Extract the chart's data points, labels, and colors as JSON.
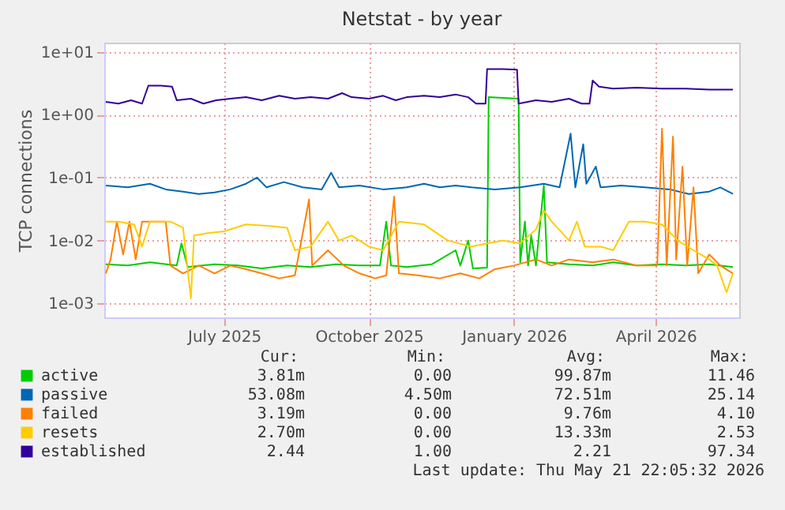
{
  "chart_data": {
    "type": "line",
    "title": "Netstat - by year",
    "ylabel": "TCP connections",
    "log": "y",
    "grid": true,
    "legend": "bottom",
    "xlim": [
      "2025-04-16",
      "2026-05-24"
    ],
    "xticks": [
      {
        "value": "2025-07-01",
        "label": "July 2025"
      },
      {
        "value": "2025-10-01",
        "label": "October 2025"
      },
      {
        "value": "2026-01-01",
        "label": "January 2026"
      },
      {
        "value": "2026-04-01",
        "label": "April 2026"
      }
    ],
    "ylim": [
      0.0006,
      14
    ],
    "yticks": [
      {
        "value": 0.001,
        "label": "1e-03"
      },
      {
        "value": 0.01,
        "label": "1e-02"
      },
      {
        "value": 0.1,
        "label": "1e-01"
      },
      {
        "value": 1,
        "label": "1e+00"
      },
      {
        "value": 10,
        "label": "1e+01"
      }
    ],
    "series": [
      {
        "name": "active",
        "color": "#00cc00",
        "x": [
          "2025-04-17",
          "2025-05-01",
          "2025-05-15",
          "2025-06-01",
          "2025-06-04",
          "2025-06-08",
          "2025-06-25",
          "2025-07-10",
          "2025-07-25",
          "2025-08-10",
          "2025-08-25",
          "2025-09-10",
          "2025-09-25",
          "2025-10-08",
          "2025-10-12",
          "2025-10-15",
          "2025-10-25",
          "2025-11-10",
          "2025-11-25",
          "2025-11-28",
          "2025-12-03",
          "2025-12-06",
          "2025-12-15",
          "2025-12-16",
          "2025-12-25",
          "2026-01-04",
          "2026-01-05",
          "2026-01-08",
          "2026-01-10",
          "2026-01-12",
          "2026-01-15",
          "2026-01-20",
          "2026-01-22",
          "2026-02-05",
          "2026-02-20",
          "2026-03-05",
          "2026-03-20",
          "2026-04-05",
          "2026-04-20",
          "2026-05-05",
          "2026-05-20"
        ],
        "values": [
          0.0042,
          0.004,
          0.0045,
          0.004,
          0.009,
          0.0038,
          0.0042,
          0.004,
          0.0036,
          0.004,
          0.0038,
          0.0042,
          0.004,
          0.004,
          0.02,
          0.004,
          0.0038,
          0.0042,
          0.007,
          0.004,
          0.01,
          0.0036,
          0.0037,
          1.9,
          1.85,
          1.8,
          0.0045,
          0.02,
          0.004,
          0.012,
          0.004,
          0.075,
          0.0045,
          0.0042,
          0.004,
          0.0045,
          0.004,
          0.0042,
          0.004,
          0.0042,
          0.0038
        ]
      },
      {
        "name": "passive",
        "color": "#0066b3",
        "x": [
          "2025-04-17",
          "2025-05-01",
          "2025-05-15",
          "2025-05-25",
          "2025-06-05",
          "2025-06-15",
          "2025-06-25",
          "2025-07-05",
          "2025-07-15",
          "2025-07-22",
          "2025-07-28",
          "2025-08-08",
          "2025-08-20",
          "2025-09-01",
          "2025-09-07",
          "2025-09-12",
          "2025-09-25",
          "2025-10-10",
          "2025-10-25",
          "2025-11-05",
          "2025-11-15",
          "2025-11-25",
          "2025-12-05",
          "2025-12-20",
          "2026-01-05",
          "2026-01-20",
          "2026-01-30",
          "2026-02-06",
          "2026-02-09",
          "2026-02-14",
          "2026-02-16",
          "2026-02-22",
          "2026-02-25",
          "2026-03-10",
          "2026-03-25",
          "2026-04-10",
          "2026-04-22",
          "2026-05-05",
          "2026-05-12",
          "2026-05-20"
        ],
        "values": [
          0.075,
          0.07,
          0.08,
          0.065,
          0.06,
          0.055,
          0.058,
          0.065,
          0.08,
          0.1,
          0.07,
          0.085,
          0.07,
          0.065,
          0.12,
          0.07,
          0.075,
          0.065,
          0.07,
          0.08,
          0.07,
          0.075,
          0.07,
          0.065,
          0.07,
          0.08,
          0.07,
          0.5,
          0.07,
          0.34,
          0.08,
          0.15,
          0.07,
          0.075,
          0.07,
          0.065,
          0.055,
          0.06,
          0.07,
          0.055
        ]
      },
      {
        "name": "failed",
        "color": "#ff8000",
        "x": [
          "2025-04-17",
          "2025-04-20",
          "2025-04-24",
          "2025-04-28",
          "2025-05-02",
          "2025-05-06",
          "2025-05-10",
          "2025-05-14",
          "2025-05-25",
          "2025-05-28",
          "2025-06-05",
          "2025-06-15",
          "2025-06-25",
          "2025-07-05",
          "2025-07-15",
          "2025-07-25",
          "2025-08-05",
          "2025-08-15",
          "2025-08-24",
          "2025-08-26",
          "2025-09-05",
          "2025-09-15",
          "2025-09-25",
          "2025-10-05",
          "2025-10-12",
          "2025-10-17",
          "2025-10-20",
          "2025-11-01",
          "2025-11-15",
          "2025-11-28",
          "2025-12-10",
          "2025-12-20",
          "2026-01-01",
          "2026-01-15",
          "2026-01-25",
          "2026-02-05",
          "2026-02-20",
          "2026-03-05",
          "2026-03-20",
          "2026-04-02",
          "2026-04-05",
          "2026-04-08",
          "2026-04-12",
          "2026-04-14",
          "2026-04-18",
          "2026-04-21",
          "2026-04-25",
          "2026-04-28",
          "2026-05-05",
          "2026-05-12",
          "2026-05-20"
        ],
        "values": [
          0.003,
          0.005,
          0.02,
          0.006,
          0.02,
          0.005,
          0.02,
          0.02,
          0.02,
          0.004,
          0.003,
          0.004,
          0.003,
          0.004,
          0.0035,
          0.003,
          0.0025,
          0.0028,
          0.045,
          0.004,
          0.007,
          0.004,
          0.003,
          0.0025,
          0.0028,
          0.05,
          0.003,
          0.0028,
          0.0025,
          0.003,
          0.0025,
          0.0035,
          0.004,
          0.005,
          0.004,
          0.005,
          0.0045,
          0.005,
          0.004,
          0.004,
          0.6,
          0.004,
          0.45,
          0.005,
          0.15,
          0.004,
          0.07,
          0.003,
          0.006,
          0.004,
          0.003
        ]
      },
      {
        "name": "resets",
        "color": "#ffcc00",
        "x": [
          "2025-04-17",
          "2025-04-25",
          "2025-05-05",
          "2025-05-10",
          "2025-05-15",
          "2025-05-28",
          "2025-06-05",
          "2025-06-10",
          "2025-06-12",
          "2025-06-20",
          "2025-07-01",
          "2025-07-15",
          "2025-07-30",
          "2025-08-10",
          "2025-08-15",
          "2025-08-25",
          "2025-09-05",
          "2025-09-12",
          "2025-09-20",
          "2025-10-01",
          "2025-10-10",
          "2025-10-20",
          "2025-11-05",
          "2025-11-20",
          "2025-12-05",
          "2025-12-15",
          "2025-12-25",
          "2026-01-05",
          "2026-01-15",
          "2026-01-20",
          "2026-01-25",
          "2026-02-05",
          "2026-02-10",
          "2026-02-15",
          "2026-02-25",
          "2026-03-05",
          "2026-03-15",
          "2026-03-25",
          "2026-04-05",
          "2026-04-15",
          "2026-04-25",
          "2026-05-05",
          "2026-05-10",
          "2026-05-16",
          "2026-05-20"
        ],
        "values": [
          0.02,
          0.02,
          0.018,
          0.008,
          0.02,
          0.02,
          0.016,
          0.0012,
          0.012,
          0.013,
          0.014,
          0.018,
          0.017,
          0.016,
          0.007,
          0.008,
          0.02,
          0.01,
          0.012,
          0.008,
          0.007,
          0.02,
          0.018,
          0.01,
          0.008,
          0.009,
          0.01,
          0.009,
          0.015,
          0.03,
          0.02,
          0.01,
          0.02,
          0.008,
          0.008,
          0.007,
          0.02,
          0.02,
          0.018,
          0.01,
          0.007,
          0.005,
          0.004,
          0.0015,
          0.003
        ]
      },
      {
        "name": "established",
        "color": "#330099",
        "x": [
          "2025-04-17",
          "2025-04-25",
          "2025-05-03",
          "2025-05-10",
          "2025-05-14",
          "2025-05-22",
          "2025-05-29",
          "2025-06-01",
          "2025-06-10",
          "2025-06-18",
          "2025-06-26",
          "2025-07-05",
          "2025-07-15",
          "2025-07-25",
          "2025-08-05",
          "2025-08-15",
          "2025-08-25",
          "2025-09-05",
          "2025-09-14",
          "2025-09-20",
          "2025-10-01",
          "2025-10-10",
          "2025-10-18",
          "2025-10-25",
          "2025-11-05",
          "2025-11-15",
          "2025-11-25",
          "2025-12-03",
          "2025-12-08",
          "2025-12-14",
          "2025-12-15",
          "2025-12-25",
          "2026-01-03",
          "2026-01-04",
          "2026-01-15",
          "2026-01-25",
          "2026-02-05",
          "2026-02-13",
          "2026-02-18",
          "2026-02-20",
          "2026-02-24",
          "2026-03-05",
          "2026-03-20",
          "2026-04-05",
          "2026-04-20",
          "2026-05-05",
          "2026-05-20"
        ],
        "values": [
          1.6,
          1.5,
          1.7,
          1.5,
          2.9,
          2.9,
          2.8,
          1.7,
          1.8,
          1.5,
          1.7,
          1.8,
          1.9,
          1.7,
          2.0,
          1.8,
          1.9,
          1.8,
          2.2,
          1.9,
          1.8,
          2.0,
          1.7,
          1.9,
          2.0,
          1.9,
          2.1,
          1.9,
          1.5,
          1.5,
          5.3,
          5.3,
          5.2,
          1.5,
          1.7,
          1.6,
          1.8,
          1.5,
          1.5,
          3.5,
          2.8,
          2.6,
          2.7,
          2.6,
          2.6,
          2.5,
          2.5
        ]
      }
    ],
    "annotations": [
      "Cur:",
      "Min:",
      "Avg:",
      "Max:",
      "3.81m",
      "0.00",
      "99.87m",
      "11.46",
      "53.08m",
      "4.50m",
      "72.51m",
      "25.14",
      "3.19m",
      "0.00",
      "9.76m",
      "4.10",
      "2.70m",
      "0.00",
      "13.33m",
      "2.53",
      "2.44",
      "1.00",
      "2.21",
      "97.34",
      "Last update: Thu May 21 22:05:32 2026"
    ]
  }
}
